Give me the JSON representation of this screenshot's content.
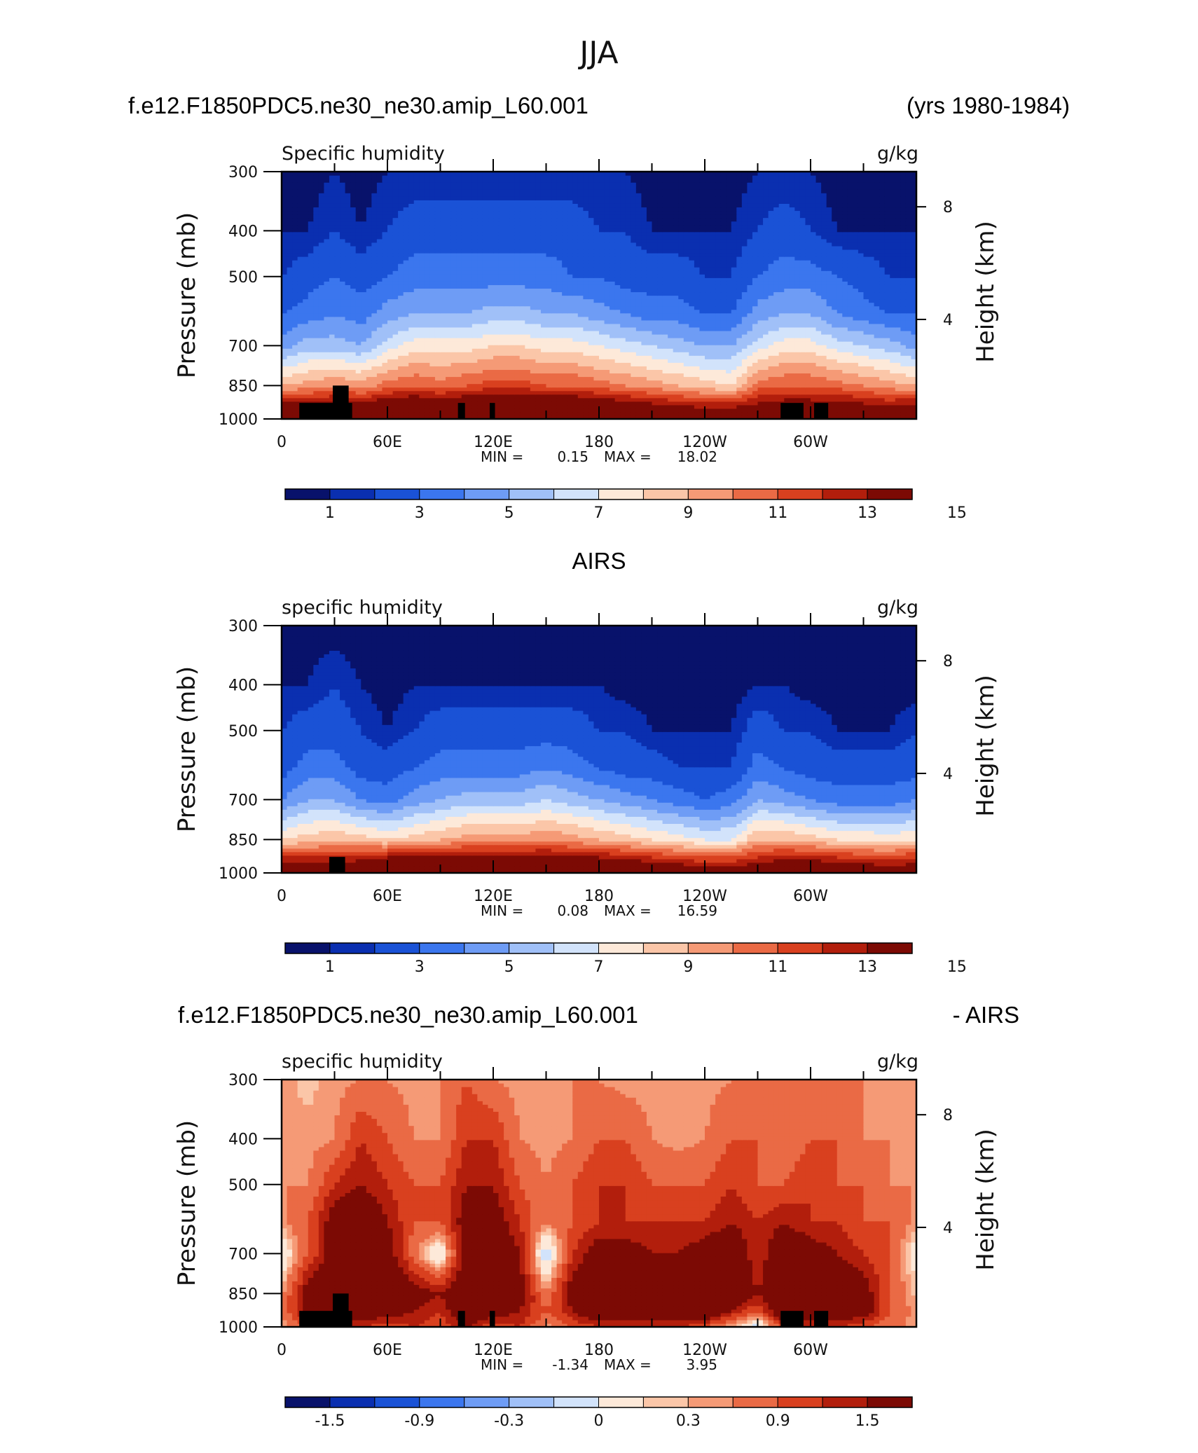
{
  "page": {
    "title": "JJA",
    "header1_left": "f.e12.F1850PDC5.ne30_ne30.amip_L60.001",
    "header1_right": "(yrs 1980-1984)",
    "header2_center": "AIRS",
    "header3_left": "f.e12.F1850PDC5.ne30_ne30.amip_L60.001",
    "header3_right": "- AIRS"
  },
  "colors": {
    "palette": [
      "#08126b",
      "#0a2fb0",
      "#1a52d6",
      "#3b76ee",
      "#6e9cf5",
      "#a0c0f8",
      "#d2e3fb",
      "#fde9d9",
      "#fbc6a8",
      "#f59a76",
      "#ea6a45",
      "#d9401f",
      "#b21e0c",
      "#7c0a04"
    ],
    "land": "#000000"
  },
  "chart_data": [
    {
      "type": "heatmap",
      "panel": "model",
      "title": "Specific humidity",
      "units": "g/kg",
      "ylabel": "Pressure (mb)",
      "y2label": "Height (km)",
      "yticks": [
        "300",
        "400",
        "500",
        "700",
        "850",
        "1000"
      ],
      "y2ticks": [
        "8",
        "4"
      ],
      "xticks": [
        "0",
        "60E",
        "120E",
        "180",
        "120W",
        "60W"
      ],
      "min_label": "MIN =",
      "min_value": "0.15",
      "max_label": "MAX =",
      "max_value": "18.02",
      "colorbar_labels": [
        "1",
        "3",
        "5",
        "7",
        "9",
        "11",
        "13",
        "15"
      ],
      "colorbar_levels": [
        0.5,
        1,
        2,
        3,
        4,
        5,
        6,
        7,
        8,
        9,
        10,
        11,
        12,
        13,
        14,
        15,
        16
      ],
      "ylim": [
        1000,
        300
      ],
      "xlim": [
        0,
        360
      ],
      "lon": [
        0,
        15,
        30,
        45,
        60,
        75,
        90,
        105,
        120,
        135,
        150,
        165,
        180,
        195,
        210,
        225,
        240,
        255,
        270,
        285,
        300,
        315,
        330,
        345,
        360
      ],
      "pressure_levels": [
        1000,
        925,
        850,
        700,
        600,
        500,
        400,
        300
      ],
      "values": [
        [
          14.5,
          14.5,
          13.5,
          14.5,
          16,
          16.5,
          16,
          17,
          17.5,
          17.5,
          17.5,
          17.5,
          17,
          16.5,
          16,
          15,
          14.5,
          14.5,
          15.5,
          16,
          16.5,
          16.5,
          15.5,
          15,
          14.5
        ],
        [
          12,
          12,
          12.5,
          12,
          13,
          13.5,
          13,
          13.5,
          14,
          14,
          13.5,
          13.5,
          13,
          12.5,
          12,
          11.5,
          11,
          11,
          12,
          12.5,
          12.5,
          12.5,
          12,
          11.5,
          12
        ],
        [
          8,
          8.5,
          9,
          8.5,
          9.5,
          10,
          9.5,
          10,
          10.5,
          10.5,
          10,
          10,
          9.5,
          9,
          8.5,
          8,
          7.5,
          7,
          9.5,
          10,
          10,
          9.5,
          9,
          8.5,
          8
        ],
        [
          3.5,
          4.5,
          4.5,
          4,
          5.5,
          6.5,
          6.5,
          6.5,
          7,
          7,
          6.5,
          6.5,
          6,
          5.5,
          5,
          4.5,
          4,
          4,
          5.5,
          6.5,
          6.5,
          5.5,
          5,
          4.5,
          3.5
        ],
        [
          2,
          2.5,
          3,
          2.5,
          3.5,
          4,
          4,
          4,
          4.5,
          4.5,
          4,
          4,
          3.5,
          3,
          2.5,
          2.5,
          2,
          2,
          3.5,
          4,
          4,
          3,
          2.5,
          2,
          2
        ],
        [
          1,
          1.5,
          2,
          1.5,
          2,
          2.5,
          2.5,
          2.5,
          2.5,
          2.5,
          2.5,
          2,
          2,
          1.5,
          1.5,
          1.5,
          1,
          1,
          2,
          2.5,
          2.5,
          2,
          1.5,
          1,
          1
        ],
        [
          0.5,
          0.5,
          1,
          0.5,
          1,
          1.5,
          1.5,
          1.5,
          1.5,
          1.5,
          1.5,
          1.5,
          1,
          1,
          0.5,
          0.5,
          0.5,
          0.5,
          1,
          1.5,
          1,
          0.5,
          0.5,
          0.5,
          0.5
        ],
        [
          0.2,
          0.2,
          0.5,
          0.2,
          0.5,
          0.5,
          0.5,
          0.5,
          0.5,
          0.5,
          0.5,
          0.5,
          0.5,
          0.5,
          0.2,
          0.2,
          0.2,
          0.2,
          0.5,
          0.5,
          0.5,
          0.2,
          0.2,
          0.2,
          0.2
        ]
      ],
      "land_blocks": [
        {
          "lon": [
            10,
            40
          ],
          "p_top": 925
        },
        {
          "lon": [
            29,
            38
          ],
          "p_top": 850
        },
        {
          "lon": [
            100,
            104
          ],
          "p_top": 925
        },
        {
          "lon": [
            118,
            121
          ],
          "p_top": 925
        },
        {
          "lon": [
            283,
            296
          ],
          "p_top": 925
        },
        {
          "lon": [
            302,
            310
          ],
          "p_top": 925
        }
      ]
    },
    {
      "type": "heatmap",
      "panel": "obs",
      "title": "specific humidity",
      "units": "g/kg",
      "ylabel": "Pressure (mb)",
      "y2label": "Height (km)",
      "yticks": [
        "300",
        "400",
        "500",
        "700",
        "850",
        "1000"
      ],
      "y2ticks": [
        "8",
        "4"
      ],
      "xticks": [
        "0",
        "60E",
        "120E",
        "180",
        "120W",
        "60W"
      ],
      "min_label": "MIN =",
      "min_value": "0.08",
      "max_label": "MAX =",
      "max_value": "16.59",
      "colorbar_labels": [
        "1",
        "3",
        "5",
        "7",
        "9",
        "11",
        "13",
        "15"
      ],
      "colorbar_levels": [
        0.5,
        1,
        2,
        3,
        4,
        5,
        6,
        7,
        8,
        9,
        10,
        11,
        12,
        13,
        14,
        15,
        16
      ],
      "ylim": [
        1000,
        300
      ],
      "xlim": [
        0,
        360
      ],
      "lon": [
        0,
        15,
        30,
        45,
        60,
        75,
        90,
        105,
        120,
        135,
        150,
        165,
        180,
        195,
        210,
        225,
        240,
        255,
        270,
        285,
        300,
        315,
        330,
        345,
        360
      ],
      "pressure_levels": [
        1000,
        925,
        850,
        700,
        600,
        500,
        400,
        300
      ],
      "values": [
        [
          13.5,
          14,
          13.5,
          14.5,
          15.5,
          15.5,
          15,
          15.5,
          16,
          16,
          16,
          15.5,
          15.5,
          15,
          14.5,
          14,
          13.5,
          13.5,
          14,
          14.5,
          14.5,
          14.5,
          14,
          13.5,
          13.5
        ],
        [
          11,
          11,
          11,
          11.5,
          12,
          12,
          12,
          12.5,
          12.5,
          12.5,
          12.5,
          12,
          12,
          11.5,
          11,
          10.5,
          10,
          10,
          11,
          11.5,
          11.5,
          11,
          10.5,
          10.5,
          11
        ],
        [
          7,
          7.5,
          8,
          7.5,
          7,
          7.5,
          8,
          8.5,
          8.5,
          8.5,
          9,
          8.5,
          8,
          7.5,
          7,
          6.5,
          6,
          6,
          8,
          8,
          7.5,
          7,
          7,
          6.5,
          7
        ],
        [
          3,
          4,
          4,
          3,
          2.5,
          3.5,
          4,
          4.5,
          4.5,
          4.5,
          5,
          4.5,
          4,
          3.5,
          3,
          2.5,
          2,
          2.5,
          4,
          3.5,
          3,
          2.5,
          2.5,
          2.5,
          3
        ],
        [
          1.5,
          2.5,
          2.5,
          1.5,
          1.5,
          2,
          2.5,
          2.5,
          2.5,
          2.5,
          3,
          2.5,
          2,
          1.5,
          1.5,
          1,
          1,
          1,
          2.5,
          2,
          1.5,
          1.5,
          1.5,
          1.5,
          1.5
        ],
        [
          1,
          1.5,
          1.5,
          1,
          0.5,
          1,
          1.5,
          1.5,
          1.5,
          1.5,
          1.5,
          1.5,
          1,
          1,
          0.5,
          0.5,
          0.5,
          0.5,
          1.5,
          1,
          1,
          0.5,
          0.5,
          0.5,
          1
        ],
        [
          0.5,
          0.5,
          1,
          0.5,
          0.2,
          0.5,
          0.5,
          0.5,
          0.5,
          0.5,
          0.5,
          0.5,
          0.5,
          0.2,
          0.2,
          0.2,
          0.2,
          0.2,
          0.5,
          0.5,
          0.2,
          0.2,
          0.2,
          0.2,
          0.2
        ],
        [
          0.1,
          0.2,
          0.2,
          0.1,
          0.1,
          0.1,
          0.2,
          0.2,
          0.2,
          0.2,
          0.2,
          0.2,
          0.1,
          0.1,
          0.1,
          0.1,
          0.1,
          0.1,
          0.2,
          0.1,
          0.1,
          0.1,
          0.1,
          0.1,
          0.1
        ]
      ],
      "land_blocks": [
        {
          "lon": [
            27,
            36
          ],
          "p_top": 925
        }
      ]
    },
    {
      "type": "heatmap",
      "panel": "difference",
      "title": "specific humidity",
      "units": "g/kg",
      "ylabel": "Pressure (mb)",
      "y2label": "Height (km)",
      "yticks": [
        "300",
        "400",
        "500",
        "700",
        "850",
        "1000"
      ],
      "y2ticks": [
        "8",
        "4"
      ],
      "xticks": [
        "0",
        "60E",
        "120E",
        "180",
        "120W",
        "60W"
      ],
      "min_label": "MIN =",
      "min_value": "-1.34",
      "max_label": "MAX =",
      "max_value": "3.95",
      "colorbar_labels": [
        "-1.5",
        "-0.9",
        "-0.3",
        "0",
        "0.3",
        "0.9",
        "1.5"
      ],
      "colorbar_levels": [
        -2.1,
        -1.8,
        -1.5,
        -1.2,
        -0.9,
        -0.6,
        -0.3,
        0,
        0.15,
        0.3,
        0.6,
        0.9,
        1.2,
        1.5,
        1.8
      ],
      "ylim": [
        1000,
        300
      ],
      "xlim": [
        0,
        360
      ],
      "lon": [
        0,
        15,
        30,
        45,
        60,
        75,
        90,
        105,
        120,
        135,
        150,
        165,
        180,
        195,
        210,
        225,
        240,
        255,
        270,
        285,
        300,
        315,
        330,
        345,
        360
      ],
      "pressure_levels": [
        1000,
        925,
        850,
        700,
        600,
        500,
        400,
        300
      ],
      "values": [
        [
          0.2,
          0.6,
          0.9,
          0.9,
          0.6,
          0.9,
          0.6,
          1.2,
          0.6,
          0.9,
          0.2,
          0.6,
          0.9,
          0.9,
          0.9,
          0.9,
          0.6,
          0.1,
          -0.5,
          0.9,
          0.9,
          0.9,
          0.6,
          0.4,
          0.2
        ],
        [
          0.3,
          1.5,
          1.8,
          1.8,
          1.5,
          1.2,
          0.9,
          1.8,
          1.5,
          1.2,
          0.6,
          1.2,
          1.8,
          1.8,
          1.8,
          1.8,
          1.8,
          1.2,
          0.6,
          1.8,
          1.8,
          1.8,
          1.5,
          0.6,
          0.2
        ],
        [
          0.2,
          1.5,
          1.8,
          1.8,
          1.8,
          1.5,
          1.2,
          1.8,
          1.8,
          1.5,
          0.3,
          1.5,
          1.8,
          1.8,
          1.8,
          1.8,
          1.8,
          1.8,
          1.2,
          1.8,
          1.8,
          1.8,
          1.5,
          0.6,
          0.1
        ],
        [
          -0.3,
          0.6,
          1.5,
          1.8,
          1.5,
          0.4,
          -0.4,
          1.5,
          1.8,
          1.2,
          -0.6,
          0.9,
          1.5,
          1.5,
          1.2,
          1.2,
          1.5,
          1.8,
          0.9,
          1.8,
          1.5,
          1.2,
          0.9,
          0.6,
          -0.2
        ],
        [
          0.2,
          0.6,
          1.5,
          1.8,
          1.2,
          0.6,
          0.6,
          1.5,
          1.5,
          0.9,
          0.3,
          0.6,
          0.9,
          0.9,
          0.9,
          0.9,
          0.9,
          1.2,
          0.9,
          1.2,
          0.9,
          0.9,
          0.6,
          0.6,
          0.2
        ],
        [
          0.3,
          0.3,
          0.9,
          1.2,
          0.9,
          0.6,
          0.6,
          1.2,
          1.2,
          0.6,
          0.3,
          0.6,
          0.9,
          0.9,
          0.6,
          0.6,
          0.6,
          0.9,
          0.6,
          0.6,
          0.9,
          0.6,
          0.6,
          0.3,
          0.3
        ],
        [
          0.2,
          0.2,
          0.3,
          0.9,
          0.6,
          0.3,
          0.3,
          0.9,
          0.9,
          0.3,
          0.2,
          0.3,
          0.6,
          0.6,
          0.3,
          0.2,
          0.3,
          0.6,
          0.6,
          0.3,
          0.6,
          0.6,
          0.3,
          0.3,
          0.2
        ],
        [
          0.2,
          0.1,
          0.2,
          0.3,
          0.3,
          0.2,
          0.3,
          0.6,
          0.3,
          0.2,
          0.3,
          0.3,
          0.3,
          0.2,
          0.2,
          0.2,
          0.2,
          0.3,
          0.3,
          0.3,
          0.3,
          0.3,
          0.3,
          0.2,
          0.2
        ]
      ],
      "land_blocks": [
        {
          "lon": [
            10,
            40
          ],
          "p_top": 925
        },
        {
          "lon": [
            29,
            38
          ],
          "p_top": 850
        },
        {
          "lon": [
            100,
            104
          ],
          "p_top": 925
        },
        {
          "lon": [
            118,
            121
          ],
          "p_top": 925
        },
        {
          "lon": [
            283,
            296
          ],
          "p_top": 925
        },
        {
          "lon": [
            302,
            310
          ],
          "p_top": 925
        }
      ]
    }
  ]
}
